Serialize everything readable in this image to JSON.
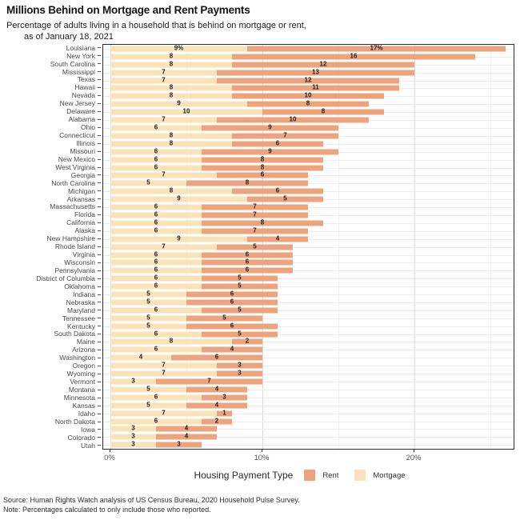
{
  "header": {
    "title": "Millions Behind on Mortgage and Rent Payments",
    "subtitle_line1": "Percentage of adults living in a household that is behind on mortgage or rent,",
    "subtitle_line2": "as of January 18, 2021"
  },
  "legend": {
    "title": "Housing Payment Type",
    "items": [
      {
        "label": "Rent",
        "color": "#ECA47E"
      },
      {
        "label": "Mortgage",
        "color": "#FAE3B9"
      }
    ]
  },
  "footer": {
    "source": "Source: Human Rights Watch analysis of US Census Bureau, 2020 Household Pulse Survey.",
    "note": "Note: Percentages calculated to only include those who reported."
  },
  "chart_data": {
    "type": "bar",
    "orientation": "horizontal",
    "stacked": true,
    "title": "Millions Behind on Mortgage and Rent Payments",
    "subtitle": "Percentage of adults living in a household that is behind on mortgage or rent, as of January 18, 2021",
    "xlabel": "",
    "ylabel": "",
    "xlim": [
      0,
      26.5
    ],
    "grid": "on",
    "grid_percents": [
      0,
      5,
      10,
      15,
      20,
      25
    ],
    "x_ticks": [
      {
        "value": 0,
        "label": "0%"
      },
      {
        "value": 10,
        "label": "10%"
      },
      {
        "value": 20,
        "label": "20%"
      }
    ],
    "legend_position": "bottom",
    "series_order": [
      "Mortgage",
      "Rent"
    ],
    "colors": {
      "Mortgage": "#FAE3B9",
      "Rent": "#ECA47E"
    },
    "first_row_labels_have_percent_sign": true,
    "states": [
      {
        "name": "Louisiana",
        "mortgage": 9,
        "rent": 17
      },
      {
        "name": "New York",
        "mortgage": 8,
        "rent": 16
      },
      {
        "name": "South Carolina",
        "mortgage": 8,
        "rent": 12
      },
      {
        "name": "Mississippi",
        "mortgage": 7,
        "rent": 13
      },
      {
        "name": "Texas",
        "mortgage": 7,
        "rent": 12
      },
      {
        "name": "Hawaii",
        "mortgage": 8,
        "rent": 11
      },
      {
        "name": "Nevada",
        "mortgage": 8,
        "rent": 10
      },
      {
        "name": "New Jersey",
        "mortgage": 9,
        "rent": 8
      },
      {
        "name": "Delaware",
        "mortgage": 10,
        "rent": 8
      },
      {
        "name": "Alabama",
        "mortgage": 7,
        "rent": 10
      },
      {
        "name": "Ohio",
        "mortgage": 6,
        "rent": 9
      },
      {
        "name": "Connecticut",
        "mortgage": 8,
        "rent": 7
      },
      {
        "name": "Illinois",
        "mortgage": 8,
        "rent": 6
      },
      {
        "name": "Missouri",
        "mortgage": 6,
        "rent": 9
      },
      {
        "name": "New Mexico",
        "mortgage": 6,
        "rent": 8
      },
      {
        "name": "West Virginia",
        "mortgage": 6,
        "rent": 8
      },
      {
        "name": "Georgia",
        "mortgage": 7,
        "rent": 6
      },
      {
        "name": "North Carolina",
        "mortgage": 5,
        "rent": 8
      },
      {
        "name": "Michigan",
        "mortgage": 8,
        "rent": 6
      },
      {
        "name": "Arkansas",
        "mortgage": 9,
        "rent": 5
      },
      {
        "name": "Massachusetts",
        "mortgage": 6,
        "rent": 7
      },
      {
        "name": "Florida",
        "mortgage": 6,
        "rent": 7
      },
      {
        "name": "California",
        "mortgage": 6,
        "rent": 8
      },
      {
        "name": "Alaska",
        "mortgage": 6,
        "rent": 7
      },
      {
        "name": "New Hampshire",
        "mortgage": 9,
        "rent": 4
      },
      {
        "name": "Rhode Island",
        "mortgage": 7,
        "rent": 5
      },
      {
        "name": "Virginia",
        "mortgage": 6,
        "rent": 6
      },
      {
        "name": "Wisconsin",
        "mortgage": 6,
        "rent": 6
      },
      {
        "name": "Pennsylvania",
        "mortgage": 6,
        "rent": 6
      },
      {
        "name": "District of Columbia",
        "mortgage": 6,
        "rent": 5
      },
      {
        "name": "Oklahoma",
        "mortgage": 6,
        "rent": 5
      },
      {
        "name": "Indiana",
        "mortgage": 5,
        "rent": 6
      },
      {
        "name": "Nebraska",
        "mortgage": 5,
        "rent": 6
      },
      {
        "name": "Maryland",
        "mortgage": 6,
        "rent": 5
      },
      {
        "name": "Tennessee",
        "mortgage": 5,
        "rent": 5
      },
      {
        "name": "Kentucky",
        "mortgage": 5,
        "rent": 6
      },
      {
        "name": "South Dakota",
        "mortgage": 6,
        "rent": 5
      },
      {
        "name": "Maine",
        "mortgage": 8,
        "rent": 2
      },
      {
        "name": "Arizona",
        "mortgage": 6,
        "rent": 4
      },
      {
        "name": "Washington",
        "mortgage": 4,
        "rent": 6
      },
      {
        "name": "Oregon",
        "mortgage": 7,
        "rent": 3
      },
      {
        "name": "Wyoming",
        "mortgage": 7,
        "rent": 3
      },
      {
        "name": "Vermont",
        "mortgage": 3,
        "rent": 7
      },
      {
        "name": "Montana",
        "mortgage": 5,
        "rent": 4
      },
      {
        "name": "Minnesota",
        "mortgage": 6,
        "rent": 3
      },
      {
        "name": "Kansas",
        "mortgage": 5,
        "rent": 4
      },
      {
        "name": "Idaho",
        "mortgage": 7,
        "rent": 1
      },
      {
        "name": "North Dakota",
        "mortgage": 6,
        "rent": 2
      },
      {
        "name": "Iowa",
        "mortgage": 3,
        "rent": 4
      },
      {
        "name": "Colorado",
        "mortgage": 3,
        "rent": 4
      },
      {
        "name": "Utah",
        "mortgage": 3,
        "rent": 3
      }
    ]
  }
}
